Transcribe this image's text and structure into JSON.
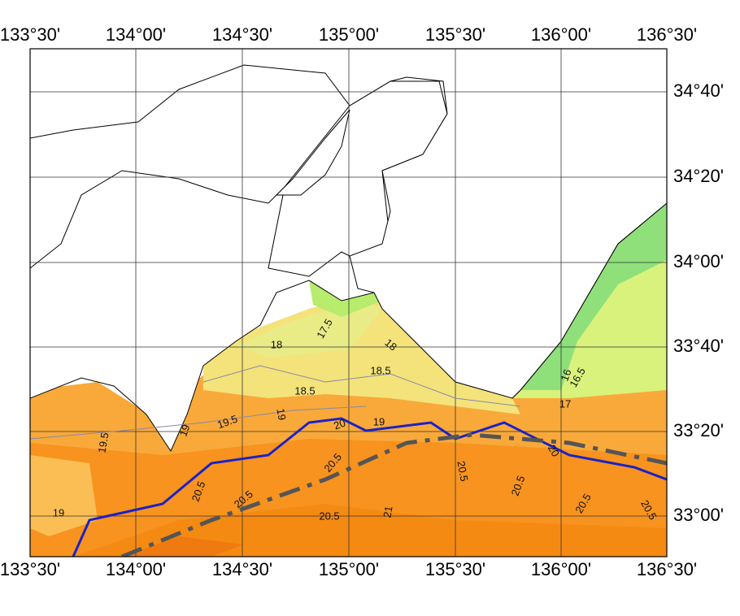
{
  "map": {
    "top_labels": [
      "133°30'",
      "134°00'",
      "134°30'",
      "135°00'",
      "135°30'",
      "136°00'",
      "136°30'"
    ],
    "bottom_labels": [
      "133°30'",
      "134°00'",
      "134°30'",
      "135°00'",
      "135°30'",
      "136°00'",
      "136°30'"
    ],
    "right_labels": [
      "34°40'",
      "34°20'",
      "34°00'",
      "33°40'",
      "33°20'",
      "33°00'"
    ],
    "contour_labels": [
      "17.5",
      "18",
      "18",
      "18.5",
      "18.5",
      "19",
      "19.5",
      "19",
      "20",
      "19",
      "19.5",
      "20.5",
      "20.5",
      "20.5",
      "19",
      "20.5",
      "21",
      "20.5",
      "20.5",
      "20.5",
      "20.5",
      "16",
      "16.5",
      "17",
      "20"
    ]
  }
}
